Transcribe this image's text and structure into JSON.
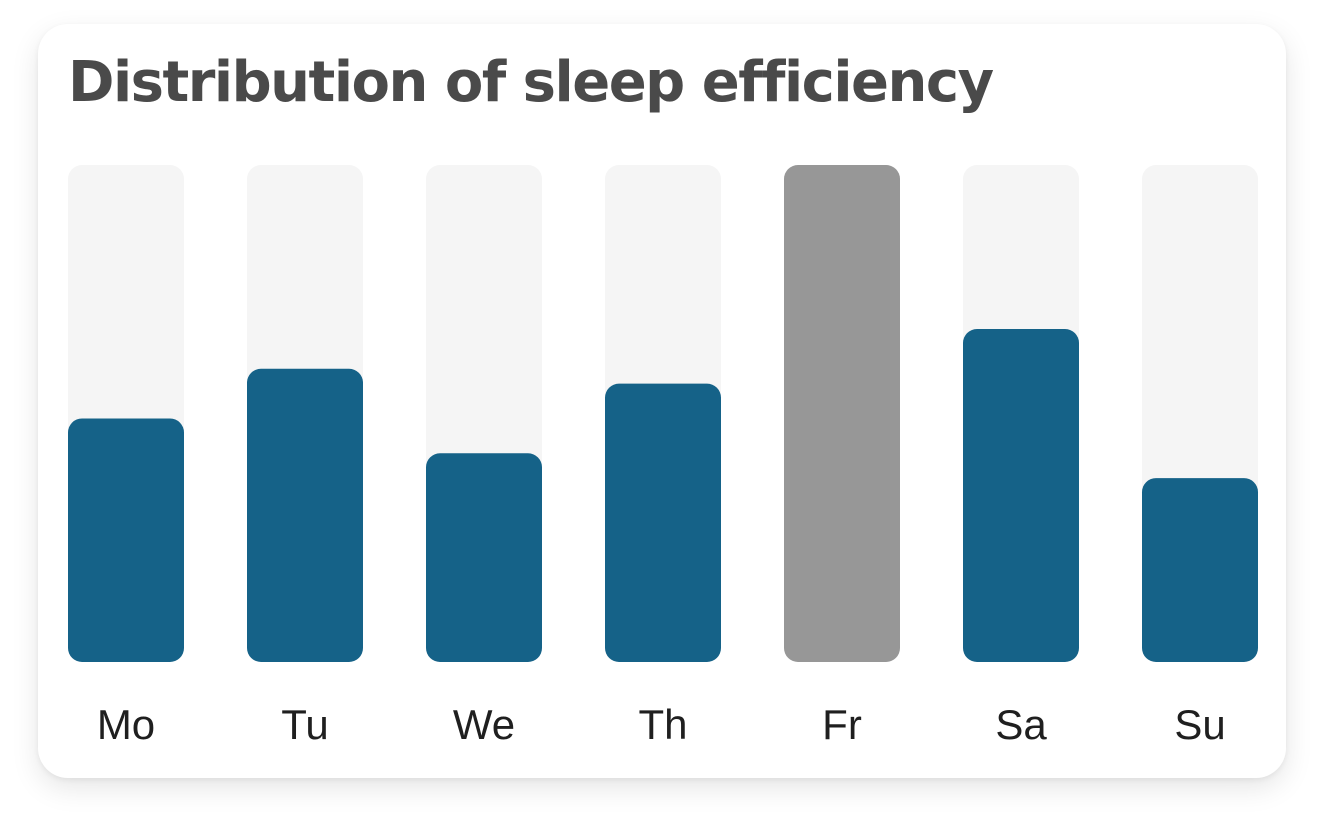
{
  "chart_data": {
    "type": "bar",
    "title": "Distribution of sleep efficiency",
    "categories": [
      "Mo",
      "Tu",
      "We",
      "Th",
      "Fr",
      "Sa",
      "Su"
    ],
    "values": [
      49,
      59,
      42,
      56,
      100,
      67,
      37
    ],
    "ylim": [
      0,
      100
    ],
    "highlight": [
      false,
      false,
      false,
      false,
      true,
      false,
      false
    ],
    "xlabel": "",
    "ylabel": "",
    "grid": false,
    "legend": "none"
  },
  "colors": {
    "bar": "#156288",
    "highlight_bar": "#979797",
    "track": "#f5f5f5",
    "title": "#4a4a4a",
    "label": "#1f1f1f"
  }
}
